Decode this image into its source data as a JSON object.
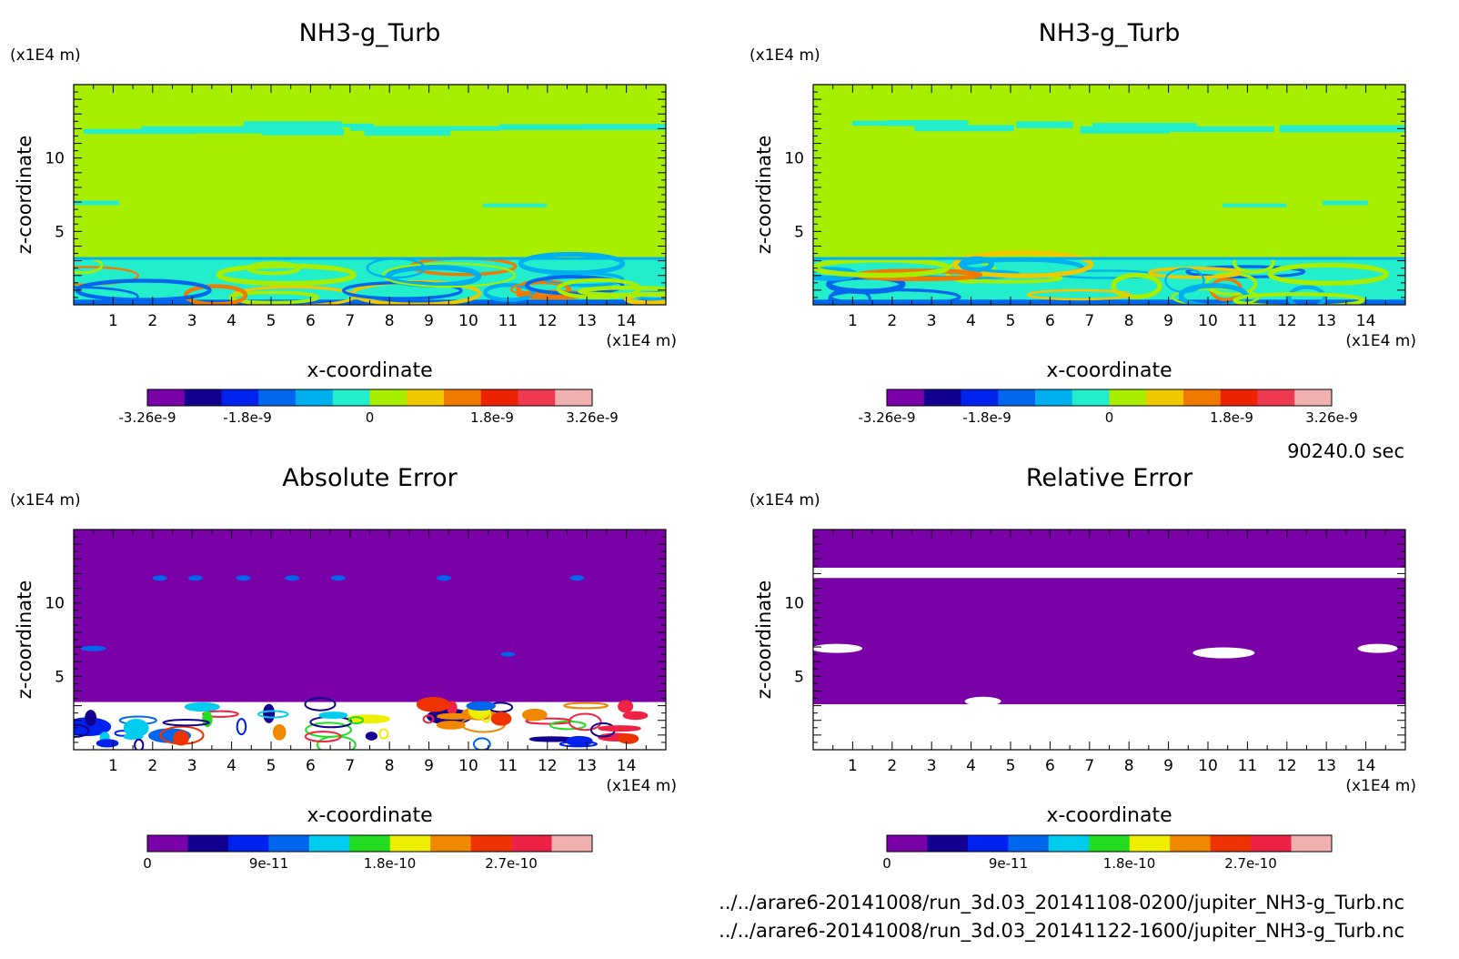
{
  "time_label": "90240.0 sec",
  "file_paths": [
    "../../arare6-20141008/run_3d.03_20141108-0200/jupiter_NH3-g_Turb.nc",
    "../../arare6-20141008/run_3d.03_20141122-1600/jupiter_NH3-g_Turb.nc"
  ],
  "colors": {
    "field_levels": [
      "#7a00a8",
      "#120090",
      "#0022ee",
      "#0066ee",
      "#00b0ee",
      "#22eecc",
      "#a8ee00",
      "#f0c800",
      "#f07a00",
      "#ee2200",
      "#ee3a50",
      "#f0b0b0"
    ],
    "error_levels": [
      "#7a00a8",
      "#120090",
      "#0022ee",
      "#0066ee",
      "#00ccee",
      "#22dd22",
      "#eeee00",
      "#f08800",
      "#ee3300",
      "#ee2244",
      "#f0b0b0"
    ]
  },
  "chart_data": [
    {
      "type": "heatmap",
      "title": "NH3-g_Turb",
      "xlabel": "x-coordinate",
      "ylabel": "z-coordinate",
      "x_unit": "(x1E4 m)",
      "y_unit": "(x1E4 m)",
      "xlim": [
        0,
        15
      ],
      "ylim": [
        0,
        15
      ],
      "x_ticks": [
        "1",
        "2",
        "3",
        "4",
        "5",
        "6",
        "7",
        "8",
        "9",
        "10",
        "11",
        "12",
        "13",
        "14"
      ],
      "y_ticks": [
        "5",
        "10"
      ],
      "colorbar_labels": [
        "-3.26e-9",
        "-1.8e-9",
        "0",
        "1.8e-9",
        "3.26e-9"
      ],
      "background_level": "near zero (green)",
      "features": [
        {
          "z_range": [
            11.5,
            12.6
          ],
          "kind": "thin cyan band"
        },
        {
          "z_range": [
            0,
            3.2
          ],
          "kind": "turbulent mixed layer"
        }
      ]
    },
    {
      "type": "heatmap",
      "title": "NH3-g_Turb",
      "xlabel": "x-coordinate",
      "ylabel": "z-coordinate",
      "x_unit": "(x1E4 m)",
      "y_unit": "(x1E4 m)",
      "xlim": [
        0,
        15
      ],
      "ylim": [
        0,
        15
      ],
      "x_ticks": [
        "1",
        "2",
        "3",
        "4",
        "5",
        "6",
        "7",
        "8",
        "9",
        "10",
        "11",
        "12",
        "13",
        "14"
      ],
      "y_ticks": [
        "5",
        "10"
      ],
      "colorbar_labels": [
        "-3.26e-9",
        "-1.8e-9",
        "0",
        "1.8e-9",
        "3.26e-9"
      ],
      "background_level": "near zero (green)",
      "features": [
        {
          "z_range": [
            11.5,
            12.6
          ],
          "kind": "thin cyan band"
        },
        {
          "z_range": [
            0,
            3.2
          ],
          "kind": "turbulent mixed layer"
        }
      ]
    },
    {
      "type": "heatmap",
      "title": "Absolute Error",
      "xlabel": "x-coordinate",
      "ylabel": "z-coordinate",
      "x_unit": "(x1E4 m)",
      "y_unit": "(x1E4 m)",
      "xlim": [
        0,
        15
      ],
      "ylim": [
        0,
        15
      ],
      "x_ticks": [
        "1",
        "2",
        "3",
        "4",
        "5",
        "6",
        "7",
        "8",
        "9",
        "10",
        "11",
        "12",
        "13",
        "14"
      ],
      "y_ticks": [
        "5",
        "10"
      ],
      "colorbar_labels": [
        "0",
        "9e-11",
        "1.8e-10",
        "2.7e-10"
      ],
      "background_level": "0 (purple)",
      "features": [
        {
          "z_range": [
            0,
            3.3
          ],
          "kind": "large errors / white undefined regions"
        }
      ]
    },
    {
      "type": "heatmap",
      "title": "Relative Error",
      "xlabel": "x-coordinate",
      "ylabel": "z-coordinate",
      "x_unit": "(x1E4 m)",
      "y_unit": "(x1E4 m)",
      "xlim": [
        0,
        15
      ],
      "ylim": [
        0,
        15
      ],
      "x_ticks": [
        "1",
        "2",
        "3",
        "4",
        "5",
        "6",
        "7",
        "8",
        "9",
        "10",
        "11",
        "12",
        "13",
        "14"
      ],
      "y_ticks": [
        "5",
        "10"
      ],
      "colorbar_labels": [
        "0",
        "9e-11",
        "1.8e-10",
        "2.7e-10"
      ],
      "background_level": "0 (purple)",
      "features": [
        {
          "z_range": [
            11.6,
            12.4
          ],
          "kind": "white gap"
        },
        {
          "z_range": [
            0,
            3.2
          ],
          "kind": "white (undefined)"
        }
      ]
    }
  ]
}
